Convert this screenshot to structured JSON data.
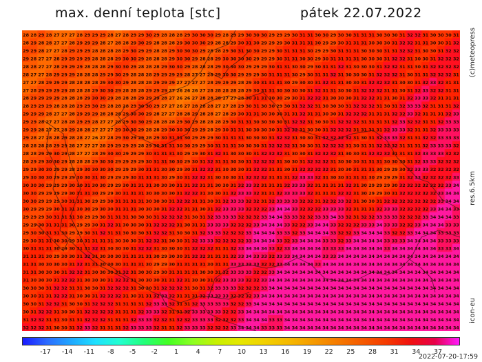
{
  "title": "max. denní teplota [stc]",
  "date": "pátek 22.07.2022",
  "side_labels": {
    "copyright": "(c)meteopress",
    "resolution": "res.6.5km",
    "model": "icon-eu"
  },
  "timestamp": "2022-07-20-17:59",
  "colorbar": {
    "ticks": [
      "-17",
      "-14",
      "-11",
      "-8",
      "-5",
      "-2",
      "1",
      "4",
      "7",
      "10",
      "13",
      "16",
      "19",
      "22",
      "25",
      "28",
      "31",
      "34",
      "37"
    ],
    "colors": [
      "#1a1aff",
      "#2b6bff",
      "#1fa8ff",
      "#1ee0ff",
      "#22ffd0",
      "#22ff7a",
      "#44ff22",
      "#8cff22",
      "#c8f000",
      "#e6e600",
      "#f2d000",
      "#f5b800",
      "#f59a00",
      "#f57a00",
      "#f55a00",
      "#f53a00",
      "#f01010",
      "#e8004a",
      "#ff1aff"
    ]
  },
  "map": {
    "rows": 38,
    "cols": 57,
    "colors": {
      "25": "#ff8a00",
      "26": "#ff7800",
      "27": "#ff6a00",
      "28": "#ff5a00",
      "29": "#ff4800",
      "30": "#ff3400",
      "31": "#ff2200",
      "32": "#ff1020",
      "33": "#ff1060",
      "34": "#ff18a0"
    }
  }
}
